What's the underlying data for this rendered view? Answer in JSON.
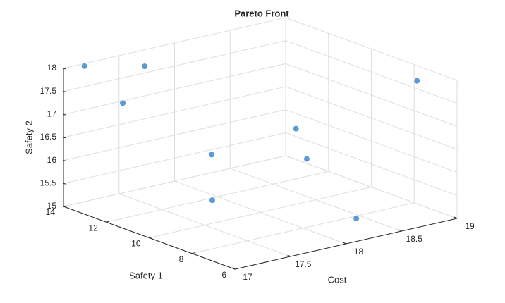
{
  "chart_data": {
    "type": "scatter3d",
    "title": "Pareto Front",
    "xlabel": "Cost",
    "ylabel": "Safety 1",
    "zlabel": "Safety 2",
    "x": [
      17.15,
      17.48,
      17.36,
      17.91,
      17.78,
      18.63,
      18.65,
      18.44,
      18.91
    ],
    "y": [
      13.8,
      12.7,
      13.1,
      11.8,
      11.1,
      11.6,
      11.2,
      7.8,
      7.4
    ],
    "z": [
      18,
      18,
      17.2,
      16,
      15.2,
      16.2,
      15.6,
      15,
      17.8
    ],
    "color": "#5b9bd5",
    "xlim": [
      17,
      19
    ],
    "xticks": [
      17,
      17.5,
      18,
      18.5,
      19
    ],
    "ylim": [
      6,
      14
    ],
    "yticks": [
      6,
      8,
      10,
      12,
      14
    ],
    "zlim": [
      15,
      18
    ],
    "zticks": [
      15,
      15.5,
      16,
      16.5,
      17,
      17.5,
      18
    ],
    "grid": true
  }
}
